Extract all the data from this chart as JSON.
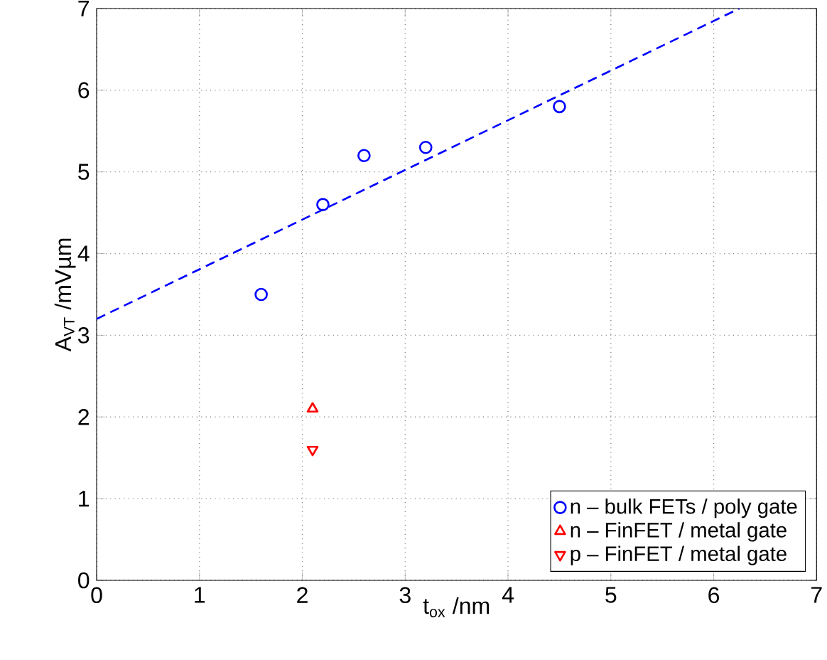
{
  "chart_data": {
    "type": "scatter",
    "xlabel": "t$_{ox}$ /nm",
    "ylabel": "A$_{VT}$ /mVµm",
    "xlim": [
      0,
      7
    ],
    "ylim": [
      0,
      7
    ],
    "xticks": [
      0,
      1,
      2,
      3,
      4,
      5,
      6,
      7
    ],
    "yticks": [
      0,
      1,
      2,
      3,
      4,
      5,
      6,
      7
    ],
    "grid": true,
    "legend": "bottom right",
    "series": [
      {
        "name": "n – bulk FETs / poly gate",
        "color": "#0000ff",
        "marker": "circle",
        "x": [
          1.6,
          2.2,
          2.6,
          3.2,
          4.5
        ],
        "values": [
          3.5,
          4.6,
          5.2,
          5.3,
          5.8
        ]
      },
      {
        "name": "n – FinFET / metal gate",
        "color": "#ff0000",
        "marker": "triangle",
        "x": [
          2.1
        ],
        "values": [
          2.1
        ]
      },
      {
        "name": "p – FinFET / metal gate",
        "color": "#ff0000",
        "marker": "triangle-down",
        "x": [
          2.1
        ],
        "values": [
          1.6
        ]
      },
      {
        "type": "line",
        "color": "#0000ff",
        "marker": "none",
        "line_style": "dashed",
        "x": [
          0,
          6.25
        ],
        "values": [
          3.2,
          7.0
        ]
      }
    ]
  }
}
